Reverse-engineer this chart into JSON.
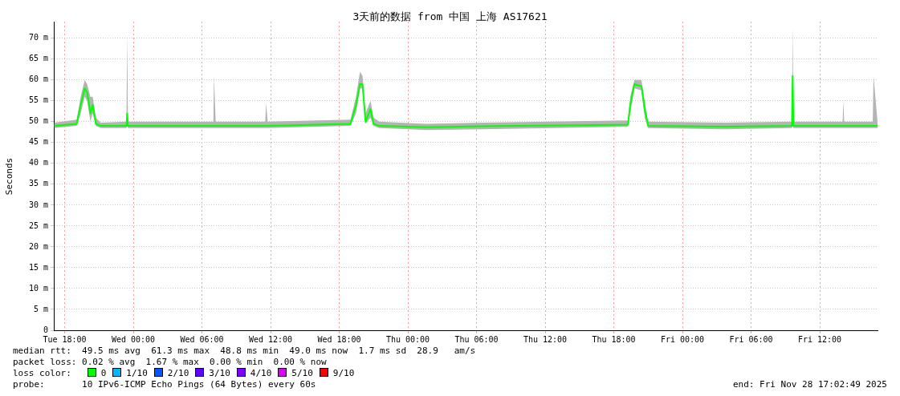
{
  "chart_data": {
    "type": "line",
    "title": "3天前的数据 from 中国 上海 AS17621",
    "ylabel": "Seconds",
    "legend_title": "loss color:",
    "legend": "bottom",
    "grid": true,
    "marker": "none",
    "line_style": "solid",
    "xlim": [
      "2025-11-25T17:03",
      "2025-11-28T17:03"
    ],
    "xticks": [
      {
        "value": "2025-11-25T18:00",
        "label": "Tue 18:00"
      },
      {
        "value": "2025-11-26T00:00",
        "label": "Wed 00:00"
      },
      {
        "value": "2025-11-26T06:00",
        "label": "Wed 06:00"
      },
      {
        "value": "2025-11-26T12:00",
        "label": "Wed 12:00"
      },
      {
        "value": "2025-11-26T18:00",
        "label": "Wed 18:00"
      },
      {
        "value": "2025-11-27T00:00",
        "label": "Thu 00:00"
      },
      {
        "value": "2025-11-27T06:00",
        "label": "Thu 06:00"
      },
      {
        "value": "2025-11-27T12:00",
        "label": "Thu 12:00"
      },
      {
        "value": "2025-11-27T18:00",
        "label": "Thu 18:00"
      },
      {
        "value": "2025-11-28T00:00",
        "label": "Fri 00:00"
      },
      {
        "value": "2025-11-28T06:00",
        "label": "Fri 06:00"
      },
      {
        "value": "2025-11-28T12:00",
        "label": "Fri 12:00"
      }
    ],
    "ylim": [
      0,
      74
    ],
    "yticks": [
      0,
      {
        "value": 5,
        "label": "5 m"
      },
      {
        "value": 10,
        "label": "10 m"
      },
      {
        "value": 15,
        "label": "15 m"
      },
      {
        "value": 20,
        "label": "20 m"
      },
      {
        "value": 25,
        "label": "25 m"
      },
      {
        "value": 30,
        "label": "30 m"
      },
      {
        "value": 35,
        "label": "35 m"
      },
      {
        "value": 40,
        "label": "40 m"
      },
      {
        "value": 45,
        "label": "45 m"
      },
      {
        "value": 50,
        "label": "50 m"
      },
      {
        "value": 55,
        "label": "55 m"
      },
      {
        "value": 60,
        "label": "60 m"
      },
      {
        "value": 65,
        "label": "65 m"
      },
      {
        "value": 70,
        "label": "70 m"
      }
    ],
    "x": [
      "2025-11-25T17:05",
      "2025-11-25T19:03",
      "2025-11-25T19:24",
      "2025-11-25T19:45",
      "2025-11-25T19:58",
      "2025-11-25T20:15",
      "2025-11-25T20:27",
      "2025-11-25T20:44",
      "2025-11-25T21:09",
      "2025-11-25T23:24",
      "2025-11-25T23:28",
      "2025-11-25T23:32",
      "2025-11-26T07:00",
      "2025-11-26T07:03",
      "2025-11-26T07:12",
      "2025-11-26T11:32",
      "2025-11-26T11:36",
      "2025-11-26T11:45",
      "2025-11-26T18:59",
      "2025-11-26T19:28",
      "2025-11-26T19:49",
      "2025-11-26T20:02",
      "2025-11-26T20:18",
      "2025-11-26T20:44",
      "2025-11-26T21:00",
      "2025-11-26T21:30",
      "2025-11-27T01:36",
      "2025-11-27T06:30",
      "2025-11-27T19:14",
      "2025-11-27T19:26",
      "2025-11-27T19:48",
      "2025-11-27T20:25",
      "2025-11-27T20:42",
      "2025-11-27T21:00",
      "2025-11-28T03:40",
      "2025-11-28T09:34",
      "2025-11-28T09:38",
      "2025-11-28T09:42",
      "2025-11-28T14:00",
      "2025-11-28T14:04",
      "2025-11-28T14:08",
      "2025-11-28T16:38",
      "2025-11-28T16:42",
      "2025-11-28T17:03"
    ],
    "series": [
      {
        "name": "0",
        "color": "#00ff00",
        "values": [
          49,
          49.5,
          54,
          58,
          57,
          52,
          54,
          49.5,
          49,
          49,
          52,
          49,
          49,
          49,
          49,
          49,
          49,
          49,
          49.5,
          54,
          59,
          59,
          50,
          53,
          49.5,
          49,
          48.7,
          48.9,
          49.3,
          54,
          59,
          58.5,
          53,
          49,
          48.8,
          49,
          61,
          49,
          49,
          49,
          49,
          49,
          49,
          49
        ],
        "lower": [
          48.5,
          49,
          52,
          56,
          55,
          50,
          52,
          49,
          48.5,
          48.5,
          49,
          48.5,
          48.5,
          48.5,
          48.5,
          48.5,
          48.5,
          48.5,
          49,
          52,
          58,
          58,
          49.5,
          51,
          49,
          48.5,
          48,
          48.2,
          48.8,
          52,
          58,
          57.5,
          51,
          48.5,
          48.2,
          48.5,
          49,
          48.5,
          48.5,
          48.5,
          48.5,
          48.5,
          48.5,
          48.5
        ],
        "upper": [
          49.8,
          50.5,
          56,
          60,
          59,
          56,
          56,
          51,
          49.8,
          50,
          71,
          50,
          50,
          61,
          50,
          50,
          54.5,
          50,
          50.5,
          56,
          62,
          61,
          52,
          55,
          51,
          50,
          49.5,
          49.8,
          50.3,
          56,
          60,
          60,
          55,
          50,
          49.8,
          50,
          73,
          50,
          50,
          55,
          50,
          50,
          61,
          50
        ]
      },
      {
        "name": "1/10",
        "color": "#00b8ff",
        "values": [
          null,
          null,
          null,
          null,
          null,
          null,
          null,
          null,
          null,
          null,
          null,
          null,
          null,
          null,
          null,
          null,
          null,
          null,
          null,
          null,
          null,
          null,
          null,
          null,
          null,
          null,
          null,
          null,
          null,
          null,
          null,
          null,
          null,
          null,
          null,
          null,
          null,
          null,
          null,
          null,
          null,
          null,
          null,
          null
        ]
      },
      {
        "name": "2/10",
        "color": "#0059ff",
        "values": [
          null,
          null,
          null,
          null,
          null,
          null,
          null,
          null,
          null,
          null,
          null,
          null,
          null,
          null,
          null,
          null,
          null,
          null,
          null,
          null,
          null,
          null,
          null,
          null,
          null,
          null,
          null,
          null,
          null,
          null,
          null,
          null,
          null,
          null,
          null,
          null,
          null,
          null,
          null,
          null,
          null,
          null,
          null,
          null
        ]
      },
      {
        "name": "3/10",
        "color": "#5e00ff",
        "values": [
          null,
          null,
          null,
          null,
          null,
          null,
          null,
          null,
          null,
          null,
          null,
          null,
          null,
          null,
          null,
          null,
          null,
          null,
          null,
          null,
          null,
          null,
          null,
          null,
          null,
          null,
          null,
          null,
          null,
          null,
          null,
          null,
          null,
          null,
          null,
          null,
          null,
          null,
          null,
          null,
          null,
          null,
          null,
          null
        ]
      },
      {
        "name": "4/10",
        "color": "#7e00ff",
        "values": [
          null,
          null,
          null,
          null,
          null,
          null,
          null,
          null,
          null,
          null,
          null,
          null,
          null,
          null,
          null,
          null,
          null,
          null,
          null,
          null,
          null,
          null,
          null,
          null,
          null,
          null,
          null,
          null,
          null,
          null,
          null,
          null,
          null,
          null,
          null,
          null,
          null,
          null,
          null,
          null,
          null,
          null,
          null,
          null
        ]
      },
      {
        "name": "5/10",
        "color": "#dd00ff",
        "values": [
          null,
          null,
          null,
          null,
          null,
          null,
          null,
          null,
          null,
          null,
          null,
          null,
          null,
          null,
          null,
          null,
          null,
          null,
          null,
          null,
          null,
          null,
          null,
          null,
          null,
          null,
          null,
          null,
          null,
          null,
          null,
          null,
          null,
          null,
          null,
          null,
          null,
          null,
          null,
          null,
          null,
          null,
          null,
          null
        ]
      },
      {
        "name": "9/10",
        "color": "#ff0000",
        "values": [
          null,
          null,
          null,
          null,
          null,
          null,
          null,
          null,
          null,
          null,
          null,
          null,
          null,
          null,
          null,
          null,
          null,
          null,
          null,
          null,
          null,
          null,
          null,
          null,
          null,
          null,
          null,
          null,
          null,
          null,
          null,
          null,
          null,
          null,
          null,
          null,
          null,
          null,
          null,
          null,
          null,
          null,
          null,
          null
        ]
      }
    ],
    "annotations": [
      "median rtt:  49.5 ms avg  61.3 ms max  48.8 ms min  49.0 ms now  1.7 ms sd  28.9   am/s",
      "packet loss: 0.02 % avg  1.67 % max  0.00 % min  0.00 % now",
      "probe:       10 IPv6-ICMP Echo Pings (64 Bytes) every 60s",
      "end: Fri Nov 28 17:02:49 2025"
    ]
  }
}
